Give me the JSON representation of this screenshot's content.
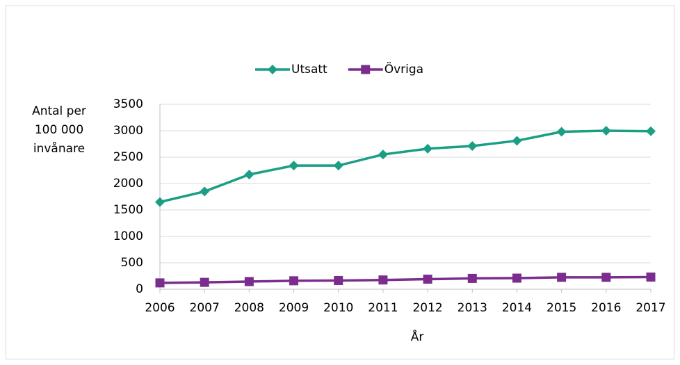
{
  "chart_data": {
    "type": "line",
    "legend": "top",
    "y_label": [
      "Antal per",
      "100 000",
      "invånare"
    ],
    "x_label": "År",
    "categories": [
      "2006",
      "2007",
      "2008",
      "2009",
      "2010",
      "2011",
      "2012",
      "2013",
      "2014",
      "2015",
      "2016",
      "2017"
    ],
    "series": [
      {
        "name": "Utsatt",
        "color": "#1a9e84",
        "marker": "diamond",
        "values": [
          1650,
          1850,
          2170,
          2340,
          2340,
          2550,
          2660,
          2710,
          2810,
          2980,
          3000,
          2990
        ]
      },
      {
        "name": "Övriga",
        "color": "#7b2d8e",
        "marker": "square",
        "values": [
          120,
          130,
          145,
          160,
          165,
          175,
          190,
          205,
          210,
          225,
          225,
          230
        ]
      }
    ],
    "ylim": [
      0,
      3500
    ],
    "yticks": [
      0,
      500,
      1000,
      1500,
      2000,
      2500,
      3000,
      3500
    ],
    "grid": true
  }
}
